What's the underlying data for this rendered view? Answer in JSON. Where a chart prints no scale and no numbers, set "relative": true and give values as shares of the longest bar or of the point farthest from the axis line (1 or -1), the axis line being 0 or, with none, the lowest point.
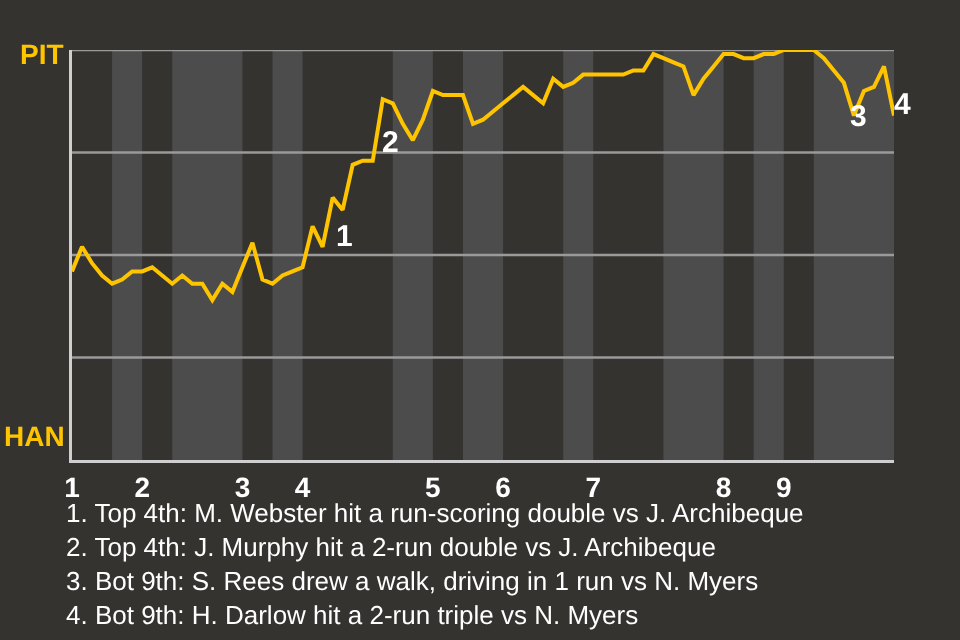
{
  "chart_data": {
    "type": "line",
    "relative": true,
    "categories": [
      "1",
      null,
      null,
      null,
      null,
      null,
      null,
      "2",
      null,
      null,
      null,
      null,
      null,
      null,
      null,
      null,
      null,
      "3",
      null,
      null,
      null,
      null,
      null,
      "4",
      null,
      null,
      null,
      null,
      null,
      null,
      null,
      null,
      null,
      null,
      null,
      null,
      "5",
      null,
      null,
      null,
      null,
      null,
      null,
      "6",
      null,
      null,
      null,
      null,
      null,
      null,
      null,
      null,
      "7",
      null,
      null,
      null,
      null,
      null,
      null,
      null,
      null,
      null,
      null,
      null,
      null,
      "8",
      null,
      null,
      null,
      null,
      null,
      "9",
      null,
      null,
      null,
      null,
      null,
      null,
      null,
      null,
      null,
      null,
      null
    ],
    "series": [
      {
        "color": "#ffc400",
        "values": [
          0.46,
          0.52,
          0.48,
          0.45,
          0.43,
          0.44,
          0.46,
          0.46,
          0.47,
          0.45,
          0.43,
          0.45,
          0.43,
          0.43,
          0.39,
          0.43,
          0.41,
          0.47,
          0.53,
          0.44,
          0.43,
          0.45,
          0.46,
          0.47,
          0.57,
          0.52,
          0.64,
          0.61,
          0.72,
          0.73,
          0.73,
          0.88,
          0.87,
          0.82,
          0.78,
          0.83,
          0.9,
          0.89,
          0.89,
          0.89,
          0.82,
          0.83,
          0.85,
          0.87,
          0.89,
          0.91,
          0.89,
          0.87,
          0.93,
          0.91,
          0.92,
          0.94,
          0.94,
          0.94,
          0.94,
          0.94,
          0.95,
          0.95,
          0.99,
          0.98,
          0.97,
          0.96,
          0.89,
          0.93,
          0.96,
          0.99,
          0.99,
          0.98,
          0.98,
          0.99,
          0.99,
          1.0,
          1.0,
          1.0,
          1.0,
          0.98,
          0.95,
          0.92,
          0.84,
          0.9,
          0.91,
          0.96,
          0.84
        ]
      }
    ],
    "marker": "none",
    "line_style": "solid",
    "ref_lines": [
      {
        "axis": "y",
        "value": 0.25,
        "label": null,
        "color": "#9a9a9a"
      },
      {
        "axis": "y",
        "value": 0.5,
        "label": null,
        "color": "#9a9a9a"
      },
      {
        "axis": "y",
        "value": 0.75,
        "label": null,
        "color": "#9a9a9a"
      },
      {
        "axis": "y",
        "value": 1,
        "label": null,
        "color": "#9a9a9a"
      }
    ],
    "annotations": [
      "PIT",
      "HAN",
      "1",
      "2",
      "3",
      "4",
      "1. Top 4th: M. Webster hit a run-scoring double vs J. Archibeque",
      "2. Top 4th: J. Murphy hit a 2-run double vs J. Archibeque",
      "3. Bot 9th: S. Rees drew a walk, driving in 1 run vs N. Myers",
      "4. Bot 9th: H. Darlow hit a 2-run triple vs N. Myers"
    ]
  }
}
